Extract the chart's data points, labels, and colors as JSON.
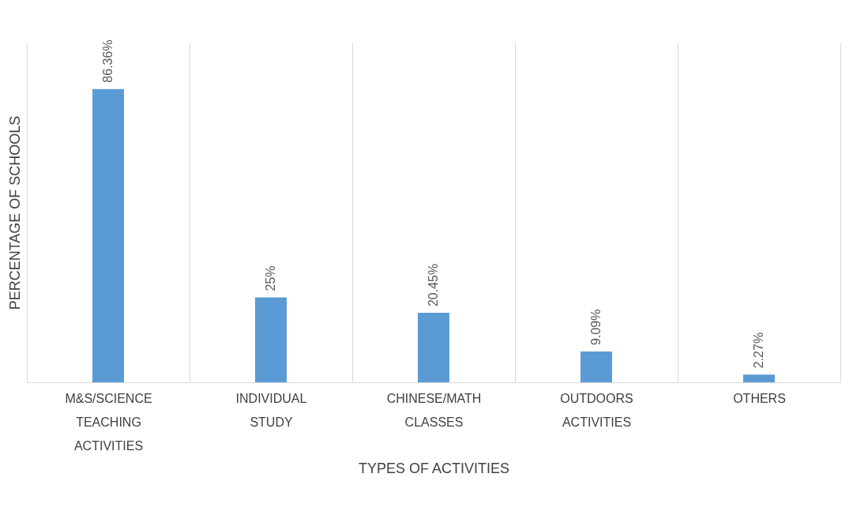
{
  "chart_data": {
    "type": "bar",
    "xlabel": "TYPES OF ACTIVITIES",
    "ylabel": "PERCENTAGE OF SCHOOLS",
    "categories": [
      "M&S/SCIENCE TEACHING ACTIVITIES",
      "INDIVIDUAL STUDY",
      "CHINESE/MATH CLASSES",
      "OUTDOORS ACTIVITIES",
      "OTHERS"
    ],
    "values": [
      86.36,
      25,
      20.45,
      9.09,
      2.27
    ],
    "value_labels": [
      "86.36%",
      "25%",
      "20.45%",
      "9.09%",
      "2.27%"
    ],
    "color": "#5b9bd5",
    "ylim": [
      0,
      100
    ],
    "grid": "x",
    "tick_labels": "x"
  }
}
